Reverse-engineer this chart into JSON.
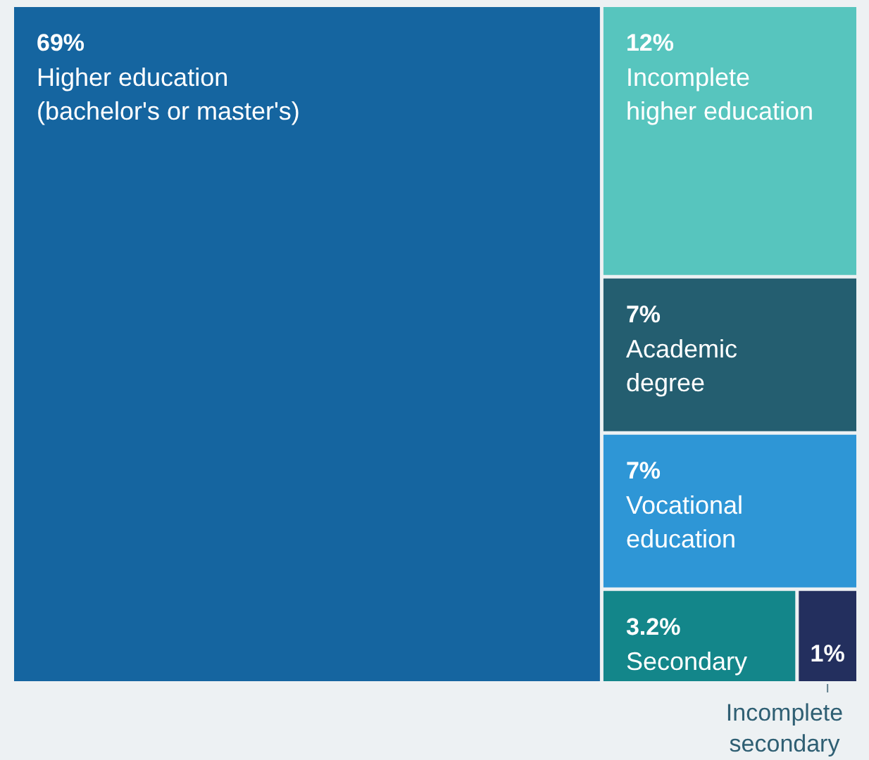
{
  "chart_data": {
    "type": "other",
    "categories": [
      "Higher education\n(bachelor's or master's)",
      "Incomplete\nhigher education",
      "Academic\ndegree",
      "Vocational\neducation",
      "Secondary",
      "Incomplete\nsecondary"
    ],
    "values": [
      69,
      12,
      7,
      7,
      3.2,
      1
    ],
    "value_labels": [
      "69%",
      "12%",
      "7%",
      "7%",
      "3.2%",
      "1%"
    ],
    "colors": [
      "#1565a0",
      "#57c5be",
      "#245e70",
      "#2e96d6",
      "#13868a",
      "#232f5e"
    ]
  }
}
